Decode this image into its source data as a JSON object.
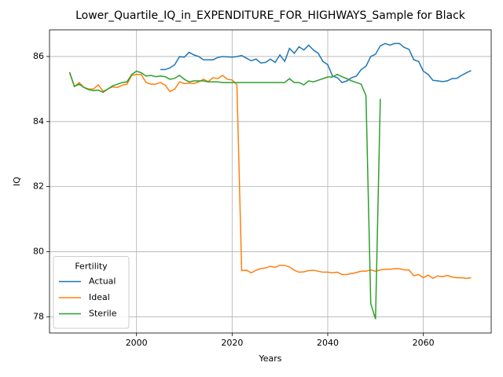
{
  "chart_data": {
    "type": "line",
    "title": "Lower_Quartile_IQ_in_EXPENDITURE_FOR_HIGHWAYS_Sample for Black",
    "xlabel": "Years",
    "ylabel": "IQ",
    "legend_title": "Fertility",
    "legend": "lower left",
    "grid": true,
    "xlim": [
      1981.8,
      2074.2
    ],
    "xticks": [
      2000,
      2020,
      2040,
      2060
    ],
    "ylim": [
      77.5,
      86.82
    ],
    "yticks": [
      78,
      80,
      82,
      84,
      86
    ],
    "series": [
      {
        "name": "Actual",
        "color": "#1f77b4",
        "x": [
          2005,
          2006,
          2007,
          2008,
          2009,
          2010,
          2011,
          2012,
          2013,
          2014,
          2015,
          2016,
          2017,
          2018,
          2019,
          2020,
          2021,
          2022,
          2023,
          2024,
          2025,
          2026,
          2027,
          2028,
          2029,
          2030,
          2031,
          2032,
          2033,
          2034,
          2035,
          2036,
          2037,
          2038,
          2039,
          2040,
          2041,
          2042,
          2043,
          2044,
          2045,
          2046,
          2047,
          2048,
          2049,
          2050,
          2051,
          2052,
          2053,
          2054,
          2055,
          2056,
          2057,
          2058,
          2059,
          2060,
          2061,
          2062,
          2063,
          2064,
          2065,
          2066,
          2067,
          2068,
          2069,
          2070
        ],
        "values": [
          85.6,
          85.6,
          85.65,
          85.75,
          86.0,
          85.98,
          86.13,
          86.05,
          86.0,
          85.9,
          85.9,
          85.9,
          85.97,
          86.0,
          85.99,
          85.98,
          86.0,
          86.03,
          85.95,
          85.87,
          85.92,
          85.8,
          85.82,
          85.92,
          85.82,
          86.05,
          85.85,
          86.25,
          86.1,
          86.3,
          86.2,
          86.35,
          86.2,
          86.1,
          85.85,
          85.75,
          85.4,
          85.35,
          85.2,
          85.25,
          85.35,
          85.4,
          85.6,
          85.7,
          86.0,
          86.07,
          86.33,
          86.4,
          86.35,
          86.4,
          86.4,
          86.28,
          86.22,
          85.9,
          85.85,
          85.55,
          85.45,
          85.27,
          85.25,
          85.23,
          85.25,
          85.32,
          85.33,
          85.42,
          85.5,
          85.57
        ]
      },
      {
        "name": "Ideal",
        "color": "#ff7f0e",
        "x": [
          1986,
          1987,
          1988,
          1989,
          1990,
          1991,
          1992,
          1993,
          1994,
          1995,
          1996,
          1997,
          1998,
          1999,
          2000,
          2001,
          2002,
          2003,
          2004,
          2005,
          2006,
          2007,
          2008,
          2009,
          2010,
          2011,
          2012,
          2013,
          2014,
          2015,
          2016,
          2017,
          2018,
          2019,
          2020,
          2021,
          2022,
          2023,
          2024,
          2025,
          2026,
          2027,
          2028,
          2029,
          2030,
          2031,
          2032,
          2033,
          2034,
          2035,
          2036,
          2037,
          2038,
          2039,
          2040,
          2041,
          2042,
          2043,
          2044,
          2045,
          2046,
          2047,
          2048,
          2049,
          2050,
          2051,
          2052,
          2053,
          2054,
          2055,
          2056,
          2057,
          2058,
          2059,
          2060,
          2061,
          2062,
          2063,
          2064,
          2065,
          2066,
          2067,
          2068,
          2069,
          2070
        ],
        "values": [
          85.5,
          85.08,
          85.2,
          85.05,
          85.0,
          85.0,
          85.13,
          84.93,
          85.0,
          85.07,
          85.05,
          85.12,
          85.15,
          85.42,
          85.45,
          85.45,
          85.2,
          85.15,
          85.15,
          85.2,
          85.12,
          84.92,
          85.0,
          85.22,
          85.17,
          85.18,
          85.17,
          85.22,
          85.3,
          85.23,
          85.35,
          85.32,
          85.42,
          85.3,
          85.28,
          85.13,
          79.42,
          79.43,
          79.35,
          79.43,
          79.48,
          79.5,
          79.55,
          79.52,
          79.58,
          79.58,
          79.53,
          79.43,
          79.37,
          79.38,
          79.42,
          79.43,
          79.4,
          79.37,
          79.37,
          79.35,
          79.37,
          79.3,
          79.3,
          79.33,
          79.36,
          79.4,
          79.4,
          79.44,
          79.4,
          79.44,
          79.46,
          79.46,
          79.48,
          79.48,
          79.44,
          79.44,
          79.26,
          79.3,
          79.2,
          79.28,
          79.18,
          79.26,
          79.23,
          79.27,
          79.22,
          79.2,
          79.2,
          79.18,
          79.2
        ]
      },
      {
        "name": "Sterile",
        "color": "#2ca02c",
        "x": [
          1986,
          1987,
          1988,
          1989,
          1990,
          1991,
          1992,
          1993,
          1994,
          1995,
          1996,
          1997,
          1998,
          1999,
          2000,
          2001,
          2002,
          2003,
          2004,
          2005,
          2006,
          2007,
          2008,
          2009,
          2010,
          2011,
          2012,
          2013,
          2014,
          2015,
          2016,
          2017,
          2018,
          2019,
          2020,
          2021,
          2022,
          2023,
          2024,
          2025,
          2026,
          2027,
          2028,
          2029,
          2030,
          2031,
          2032,
          2033,
          2034,
          2035,
          2036,
          2037,
          2038,
          2039,
          2040,
          2041,
          2042,
          2043,
          2044,
          2045,
          2046,
          2047,
          2048,
          2049,
          2050,
          2051
        ],
        "values": [
          85.52,
          85.08,
          85.15,
          85.05,
          84.98,
          84.95,
          84.97,
          84.9,
          85.0,
          85.1,
          85.15,
          85.2,
          85.22,
          85.45,
          85.55,
          85.5,
          85.4,
          85.42,
          85.38,
          85.4,
          85.38,
          85.3,
          85.33,
          85.42,
          85.3,
          85.22,
          85.25,
          85.25,
          85.25,
          85.22,
          85.22,
          85.22,
          85.2,
          85.2,
          85.2,
          85.2,
          85.2,
          85.2,
          85.2,
          85.2,
          85.2,
          85.2,
          85.2,
          85.2,
          85.2,
          85.2,
          85.32,
          85.2,
          85.2,
          85.13,
          85.25,
          85.22,
          85.27,
          85.32,
          85.37,
          85.37,
          85.45,
          85.38,
          85.32,
          85.25,
          85.2,
          85.15,
          84.8,
          78.4,
          77.93,
          84.7
        ]
      }
    ]
  }
}
